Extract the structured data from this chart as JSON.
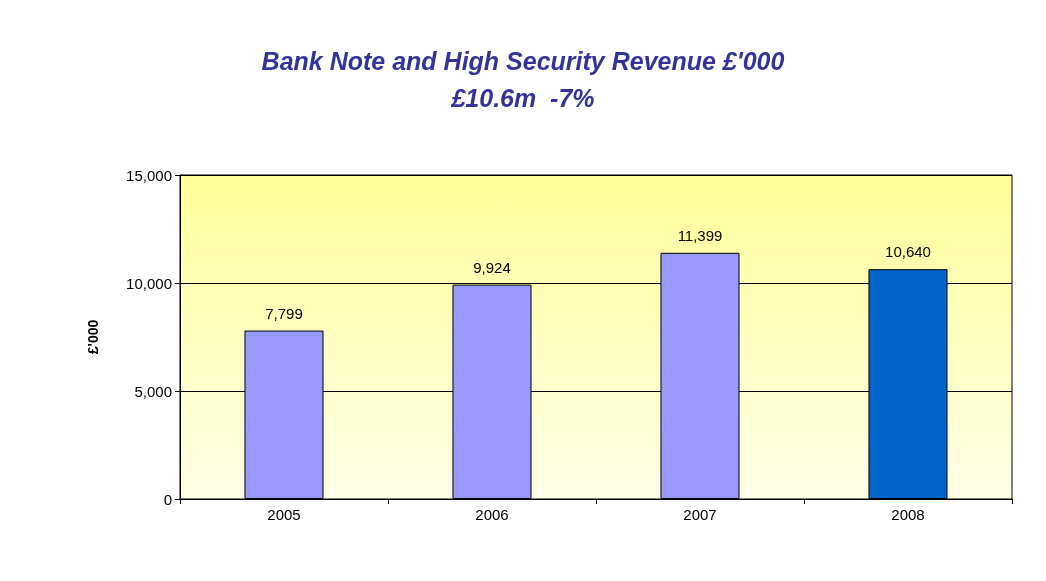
{
  "chart_data": {
    "type": "bar",
    "title": "Bank Note and High Security Revenue £'000",
    "subtitle": "£10.6m  -7%",
    "ylabel": "£'000",
    "categories": [
      "2005",
      "2006",
      "2007",
      "2008"
    ],
    "values": [
      7799,
      9924,
      11399,
      10640
    ],
    "colors": [
      "#9999ff",
      "#9999ff",
      "#9999ff",
      "#0066cc"
    ],
    "value_labels": [
      "7,799",
      "9,924",
      "11,399",
      "10,640"
    ],
    "ylim": [
      0,
      15000
    ],
    "yticks": [
      0,
      {
        "value": 5000,
        "label": "5,000"
      },
      {
        "value": 10000,
        "label": "10,000"
      },
      {
        "value": 15000,
        "label": "15,000"
      }
    ],
    "grid": "y"
  }
}
